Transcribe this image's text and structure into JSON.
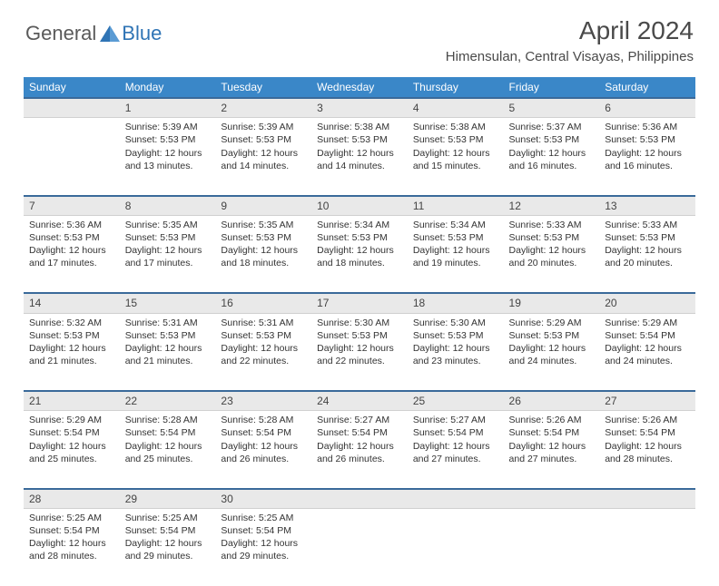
{
  "logo": {
    "text1": "General",
    "text2": "Blue"
  },
  "title": "April 2024",
  "location": "Himensulan, Central Visayas, Philippines",
  "header_bg": "#3a87c8",
  "header_fg": "#ffffff",
  "daynum_bg": "#e9e9e9",
  "daynum_border_top": "#3a6a9a",
  "text_color": "#333333",
  "body_fontsize": 10.5,
  "daynum_fontsize": 12,
  "header_fontsize": 12,
  "title_fontsize": 28,
  "location_fontsize": 15,
  "days": [
    "Sunday",
    "Monday",
    "Tuesday",
    "Wednesday",
    "Thursday",
    "Friday",
    "Saturday"
  ],
  "weeks": [
    [
      null,
      {
        "n": 1,
        "sr": "5:39 AM",
        "ss": "5:53 PM",
        "dl": "12 hours and 13 minutes."
      },
      {
        "n": 2,
        "sr": "5:39 AM",
        "ss": "5:53 PM",
        "dl": "12 hours and 14 minutes."
      },
      {
        "n": 3,
        "sr": "5:38 AM",
        "ss": "5:53 PM",
        "dl": "12 hours and 14 minutes."
      },
      {
        "n": 4,
        "sr": "5:38 AM",
        "ss": "5:53 PM",
        "dl": "12 hours and 15 minutes."
      },
      {
        "n": 5,
        "sr": "5:37 AM",
        "ss": "5:53 PM",
        "dl": "12 hours and 16 minutes."
      },
      {
        "n": 6,
        "sr": "5:36 AM",
        "ss": "5:53 PM",
        "dl": "12 hours and 16 minutes."
      }
    ],
    [
      {
        "n": 7,
        "sr": "5:36 AM",
        "ss": "5:53 PM",
        "dl": "12 hours and 17 minutes."
      },
      {
        "n": 8,
        "sr": "5:35 AM",
        "ss": "5:53 PM",
        "dl": "12 hours and 17 minutes."
      },
      {
        "n": 9,
        "sr": "5:35 AM",
        "ss": "5:53 PM",
        "dl": "12 hours and 18 minutes."
      },
      {
        "n": 10,
        "sr": "5:34 AM",
        "ss": "5:53 PM",
        "dl": "12 hours and 18 minutes."
      },
      {
        "n": 11,
        "sr": "5:34 AM",
        "ss": "5:53 PM",
        "dl": "12 hours and 19 minutes."
      },
      {
        "n": 12,
        "sr": "5:33 AM",
        "ss": "5:53 PM",
        "dl": "12 hours and 20 minutes."
      },
      {
        "n": 13,
        "sr": "5:33 AM",
        "ss": "5:53 PM",
        "dl": "12 hours and 20 minutes."
      }
    ],
    [
      {
        "n": 14,
        "sr": "5:32 AM",
        "ss": "5:53 PM",
        "dl": "12 hours and 21 minutes."
      },
      {
        "n": 15,
        "sr": "5:31 AM",
        "ss": "5:53 PM",
        "dl": "12 hours and 21 minutes."
      },
      {
        "n": 16,
        "sr": "5:31 AM",
        "ss": "5:53 PM",
        "dl": "12 hours and 22 minutes."
      },
      {
        "n": 17,
        "sr": "5:30 AM",
        "ss": "5:53 PM",
        "dl": "12 hours and 22 minutes."
      },
      {
        "n": 18,
        "sr": "5:30 AM",
        "ss": "5:53 PM",
        "dl": "12 hours and 23 minutes."
      },
      {
        "n": 19,
        "sr": "5:29 AM",
        "ss": "5:53 PM",
        "dl": "12 hours and 24 minutes."
      },
      {
        "n": 20,
        "sr": "5:29 AM",
        "ss": "5:54 PM",
        "dl": "12 hours and 24 minutes."
      }
    ],
    [
      {
        "n": 21,
        "sr": "5:29 AM",
        "ss": "5:54 PM",
        "dl": "12 hours and 25 minutes."
      },
      {
        "n": 22,
        "sr": "5:28 AM",
        "ss": "5:54 PM",
        "dl": "12 hours and 25 minutes."
      },
      {
        "n": 23,
        "sr": "5:28 AM",
        "ss": "5:54 PM",
        "dl": "12 hours and 26 minutes."
      },
      {
        "n": 24,
        "sr": "5:27 AM",
        "ss": "5:54 PM",
        "dl": "12 hours and 26 minutes."
      },
      {
        "n": 25,
        "sr": "5:27 AM",
        "ss": "5:54 PM",
        "dl": "12 hours and 27 minutes."
      },
      {
        "n": 26,
        "sr": "5:26 AM",
        "ss": "5:54 PM",
        "dl": "12 hours and 27 minutes."
      },
      {
        "n": 27,
        "sr": "5:26 AM",
        "ss": "5:54 PM",
        "dl": "12 hours and 28 minutes."
      }
    ],
    [
      {
        "n": 28,
        "sr": "5:25 AM",
        "ss": "5:54 PM",
        "dl": "12 hours and 28 minutes."
      },
      {
        "n": 29,
        "sr": "5:25 AM",
        "ss": "5:54 PM",
        "dl": "12 hours and 29 minutes."
      },
      {
        "n": 30,
        "sr": "5:25 AM",
        "ss": "5:54 PM",
        "dl": "12 hours and 29 minutes."
      },
      null,
      null,
      null,
      null
    ]
  ],
  "labels": {
    "sunrise": "Sunrise:",
    "sunset": "Sunset:",
    "daylight": "Daylight:"
  }
}
